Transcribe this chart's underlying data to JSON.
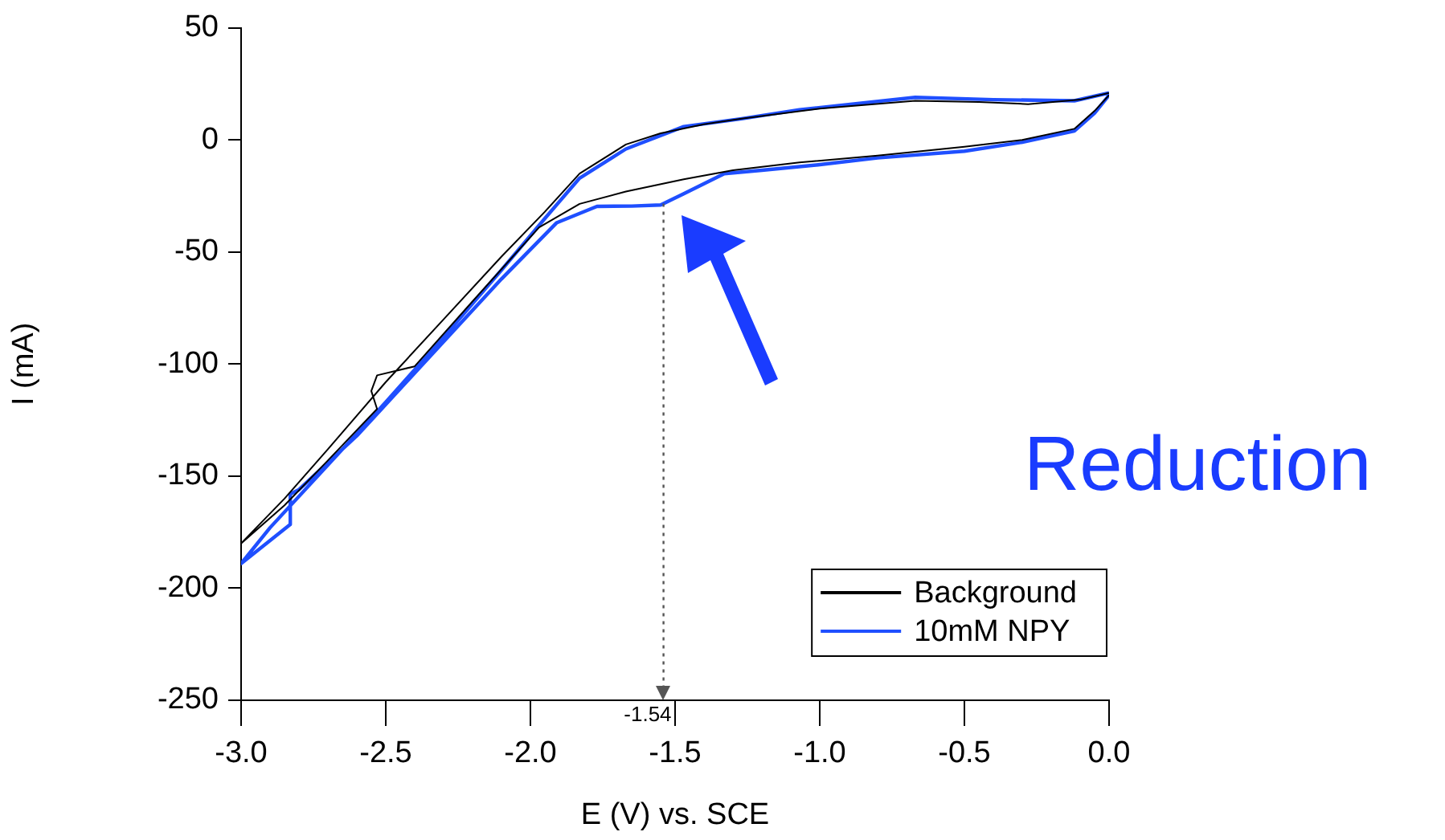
{
  "chart_data": {
    "type": "line",
    "xlabel": "E (V) vs. SCE",
    "ylabel": "I (mA)",
    "xlim": [
      -3,
      0
    ],
    "xticks": [
      {
        "value": -3,
        "label": "-3.0"
      },
      {
        "value": -2.5,
        "label": "-2.5"
      },
      {
        "value": -2,
        "label": "-2.0"
      },
      {
        "value": -1.5,
        "label": "-1.5"
      },
      {
        "value": -1,
        "label": "-1.0"
      },
      {
        "value": -0.5,
        "label": "-0.5"
      },
      {
        "value": 0,
        "label": "0.0"
      }
    ],
    "ylim": [
      -250,
      50
    ],
    "yticks": [
      -250,
      -200,
      -150,
      -100,
      -50,
      0,
      50
    ],
    "grid": false,
    "legend": "bottom right",
    "marker": "none",
    "line_style": "solid",
    "series": [
      {
        "name": "Background",
        "color": "#000000",
        "x": [
          0,
          -0.05,
          -0.12,
          -0.3,
          -0.5,
          -0.8,
          -1.07,
          -1.3,
          -1.47,
          -1.67,
          -1.83,
          -1.97,
          -2.2,
          -2.4,
          -2.53,
          -2.55,
          -2.53,
          -2.7,
          -2.85,
          -3.0,
          -2.85,
          -2.7,
          -2.5,
          -2.3,
          -2.1,
          -1.95,
          -1.83,
          -1.67,
          -1.55,
          -1.4,
          -1.27,
          -1.0,
          -0.67,
          -0.45,
          -0.28,
          -0.1,
          0
        ],
        "values": [
          20,
          13,
          5,
          0,
          -3,
          -7,
          -10,
          -13.5,
          -17.5,
          -23,
          -28.5,
          -39,
          -72,
          -101,
          -105,
          -112,
          -120,
          -143,
          -163,
          -180,
          -160,
          -138,
          -108,
          -80,
          -52,
          -32,
          -15,
          -2,
          3,
          7,
          9.5,
          14,
          17.5,
          17,
          16,
          18,
          21
        ]
      },
      {
        "name": "10mM NPY",
        "color": "#1f4fff",
        "x": [
          0,
          -0.05,
          -0.12,
          -0.3,
          -0.5,
          -0.8,
          -1.0,
          -1.2,
          -1.33,
          -1.47,
          -1.55,
          -1.65,
          -1.77,
          -1.91,
          -2.1,
          -2.4,
          -2.6,
          -2.8,
          -2.83,
          -2.83,
          -3.0,
          -2.9,
          -2.7,
          -2.5,
          -2.3,
          -2.1,
          -1.95,
          -1.83,
          -1.67,
          -1.47,
          -1.27,
          -1.07,
          -0.67,
          -0.4,
          -0.12,
          0
        ],
        "values": [
          20,
          12,
          4,
          -1,
          -5,
          -8,
          -11,
          -13.5,
          -15,
          -24,
          -29,
          -29.5,
          -29.6,
          -37,
          -62,
          -104,
          -132,
          -156,
          -158,
          -171.5,
          -189,
          -173,
          -145,
          -117,
          -88,
          -58,
          -35,
          -17,
          -4,
          6,
          9.5,
          13.5,
          19,
          18,
          17.5,
          21
        ]
      }
    ],
    "ref_lines": [
      {
        "axis": "x",
        "value": -1.54,
        "label": "-1.54",
        "color": "#555555",
        "line_style": "dotted"
      }
    ],
    "annotations": [
      "Reduction"
    ]
  }
}
